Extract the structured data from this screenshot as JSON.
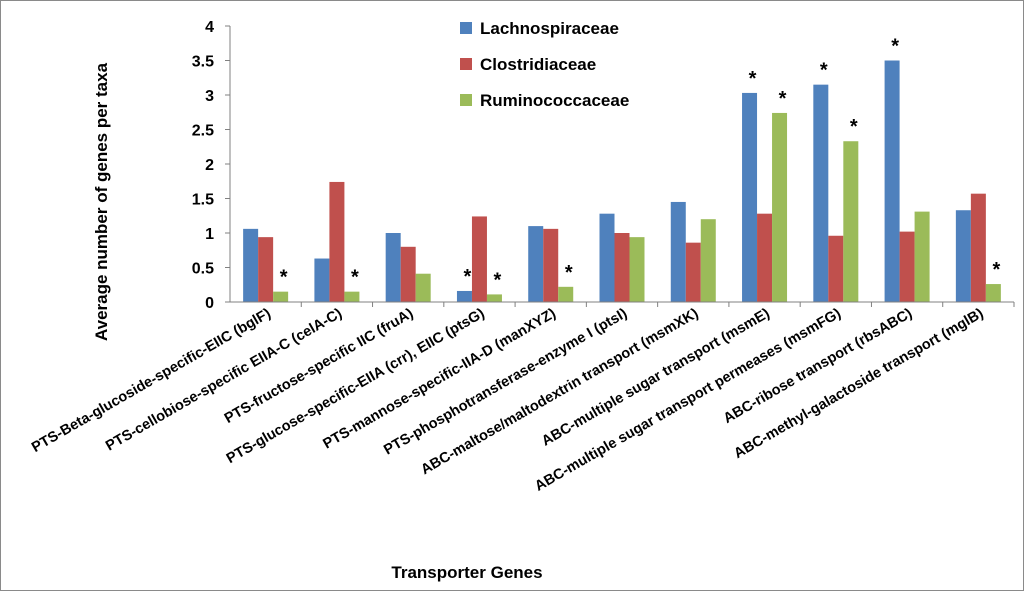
{
  "chart_data": {
    "type": "bar",
    "title": "",
    "xlabel": "Transporter Genes",
    "ylabel": "Average number of genes per taxa",
    "ylim": [
      0,
      4
    ],
    "yticks": [
      "0",
      "0.5",
      "1",
      "1.5",
      "2",
      "2.5",
      "3",
      "3.5",
      "4"
    ],
    "grid": false,
    "legend_position": "top-center",
    "categories": [
      "PTS-Beta-glucoside-specific-EIIC (bglF)",
      "PTS-cellobiose-specific EIIA-C (celA-C)",
      "PTS-fructose-specific IIC (fruA)",
      "PTS-glucose-specific-EIIA (crr), EIIC (ptsG)",
      "PTS-mannose-specific-IIA-D (manXYZ)",
      "PTS-phosphotransferase-enzyme I (ptsI)",
      "ABC-maltose/maltodextrin transport (msmXK)",
      "ABC-multiple sugar transport (msmE)",
      "ABC-multiple sugar transport permeases (msmFG)",
      "ABC-ribose transport (rbsABC)",
      "ABC-methyl-galactoside transport (mglB)"
    ],
    "series": [
      {
        "name": "Lachnospiraceae",
        "color": "#4F81BD",
        "values": [
          1.06,
          0.63,
          1.0,
          0.16,
          1.1,
          1.28,
          1.45,
          3.03,
          3.15,
          3.5,
          1.33
        ],
        "significant": [
          false,
          false,
          false,
          true,
          false,
          false,
          false,
          true,
          true,
          true,
          false
        ]
      },
      {
        "name": "Clostridiaceae",
        "color": "#C0504D",
        "values": [
          0.94,
          1.74,
          0.8,
          1.24,
          1.06,
          1.0,
          0.86,
          1.28,
          0.96,
          1.02,
          1.57
        ],
        "significant": [
          false,
          false,
          false,
          false,
          false,
          false,
          false,
          false,
          false,
          false,
          false
        ]
      },
      {
        "name": "Ruminococcaceae",
        "color": "#9BBB59",
        "values": [
          0.15,
          0.15,
          0.41,
          0.11,
          0.22,
          0.94,
          1.2,
          2.74,
          2.33,
          1.31,
          0.26
        ],
        "significant": [
          true,
          true,
          false,
          true,
          true,
          false,
          false,
          true,
          true,
          false,
          true
        ]
      }
    ],
    "significance_marker": "*"
  }
}
